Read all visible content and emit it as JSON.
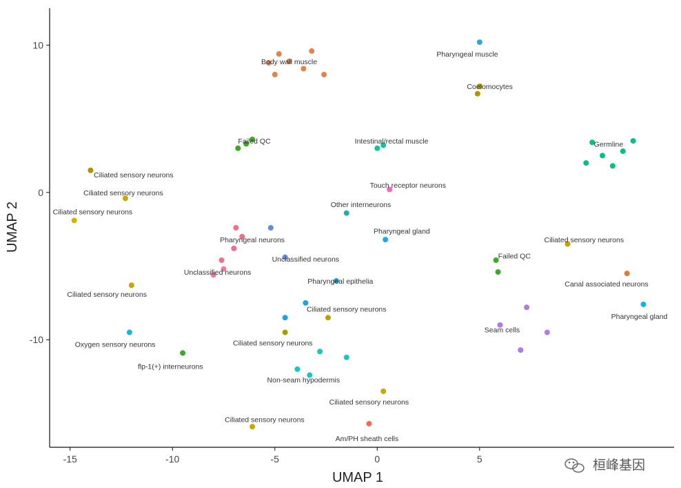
{
  "chart_data": {
    "type": "scatter",
    "xlabel": "UMAP 1",
    "ylabel": "UMAP 2",
    "xlim": [
      -16,
      14.5
    ],
    "ylim": [
      -17.3,
      12.5
    ],
    "xticks": [
      -15,
      -10,
      -5,
      0,
      5
    ],
    "yticks": [
      -10,
      0,
      10
    ],
    "grid": false,
    "clusters": [
      {
        "label": "Body wall muscle",
        "x": -4.3,
        "y": 8.9,
        "color": "#E8804A",
        "points": [
          [
            -4.3,
            8.9
          ],
          [
            -5.0,
            8.0
          ],
          [
            -3.6,
            8.4
          ],
          [
            -4.8,
            9.4
          ],
          [
            -3.2,
            9.6
          ],
          [
            -5.3,
            8.8
          ],
          [
            -2.6,
            8.0
          ]
        ]
      },
      {
        "label": "Pharyngeal muscle",
        "x": 4.4,
        "y": 9.4,
        "color": "#2BA7DE",
        "points": [
          [
            5.0,
            10.2
          ]
        ]
      },
      {
        "label": "Coelomocytes",
        "x": 5.5,
        "y": 7.2,
        "color": "#A89A00",
        "points": [
          [
            4.9,
            6.7
          ],
          [
            5.0,
            7.2
          ]
        ]
      },
      {
        "label": "Failed QC",
        "x": -6.0,
        "y": 3.5,
        "color": "#3BAA1E",
        "points": [
          [
            -6.4,
            3.3
          ],
          [
            -6.8,
            3.0
          ],
          [
            -6.1,
            3.6
          ]
        ]
      },
      {
        "label": "Intestinal/rectal muscle",
        "x": 0.7,
        "y": 3.5,
        "color": "#16BFA3",
        "points": [
          [
            0.0,
            3.0
          ],
          [
            0.3,
            3.2
          ]
        ]
      },
      {
        "label": "Germline",
        "x": 11.3,
        "y": 3.3,
        "color": "#00C082",
        "points": [
          [
            11.0,
            2.5
          ],
          [
            10.5,
            3.4
          ],
          [
            12.0,
            2.8
          ],
          [
            11.5,
            1.8
          ],
          [
            10.2,
            2.0
          ],
          [
            12.5,
            3.5
          ]
        ]
      },
      {
        "label": "Ciliated sensory neurons",
        "x": -11.9,
        "y": 1.2,
        "color": "#B88C00",
        "points": [
          [
            -14.0,
            1.5
          ]
        ]
      },
      {
        "label": "Touch receptor neurons",
        "x": 1.5,
        "y": 0.5,
        "color": "#F068C0",
        "points": [
          [
            0.6,
            0.2
          ]
        ]
      },
      {
        "label": "Ciliated sensory neurons",
        "x": -12.4,
        "y": 0.0,
        "color": "#C8A800",
        "points": [
          [
            -12.3,
            -0.4
          ]
        ]
      },
      {
        "label": "Other interneurons",
        "x": -0.8,
        "y": -0.8,
        "color": "#12B5A7",
        "points": [
          [
            -1.5,
            -1.4
          ]
        ]
      },
      {
        "label": "Ciliated sensory neurons",
        "x": -13.9,
        "y": -1.3,
        "color": "#D8B000",
        "points": [
          [
            -14.8,
            -1.9
          ]
        ]
      },
      {
        "label": "Pharyngeal gland",
        "x": 1.2,
        "y": -2.6,
        "color": "#28A6E0",
        "points": [
          [
            0.4,
            -3.2
          ]
        ]
      },
      {
        "label": "Pharyngeal neurons",
        "x": -6.1,
        "y": -3.2,
        "color": "#F0708A",
        "points": [
          [
            -7.0,
            -3.8
          ],
          [
            -7.6,
            -4.6
          ],
          [
            -6.6,
            -3.0
          ],
          [
            -6.9,
            -2.4
          ]
        ]
      },
      {
        "label": "Ciliated sensory neurons",
        "x": 10.1,
        "y": -3.2,
        "color": "#C8A000",
        "points": [
          [
            9.3,
            -3.5
          ]
        ]
      },
      {
        "label": "Unclassified neurons",
        "x": -3.5,
        "y": -4.5,
        "color": "#5F8CE8",
        "points": [
          [
            -5.2,
            -2.4
          ],
          [
            -4.5,
            -4.4
          ]
        ]
      },
      {
        "label": "Failed QC",
        "x": 6.7,
        "y": -4.3,
        "color": "#3AAA28",
        "points": [
          [
            5.8,
            -4.6
          ],
          [
            5.9,
            -5.4
          ]
        ]
      },
      {
        "label": "Unclassified neurons",
        "x": -7.8,
        "y": -5.4,
        "color": "#F27A9A",
        "points": [
          [
            -8.0,
            -5.6
          ],
          [
            -7.5,
            -5.2
          ]
        ]
      },
      {
        "label": "Pharyngeal epithelia",
        "x": -1.8,
        "y": -6.0,
        "color": "#20A2DA",
        "points": [
          [
            -2.0,
            -6.0
          ],
          [
            -3.5,
            -7.5
          ],
          [
            -4.5,
            -8.5
          ]
        ]
      },
      {
        "label": "Canal associated neurons",
        "x": 11.2,
        "y": -6.2,
        "color": "#E07A3A",
        "points": [
          [
            12.2,
            -5.5
          ]
        ]
      },
      {
        "label": "Ciliated sensory neurons",
        "x": -13.2,
        "y": -6.9,
        "color": "#C8A500",
        "points": [
          [
            -12.0,
            -6.3
          ]
        ]
      },
      {
        "label": "Ciliated sensory neurons",
        "x": -1.5,
        "y": -7.9,
        "color": "#B8A000",
        "points": [
          [
            -2.4,
            -8.5
          ]
        ]
      },
      {
        "label": "Pharyngeal gland",
        "x": 12.8,
        "y": -8.4,
        "color": "#10B4E8",
        "points": [
          [
            13.0,
            -7.6
          ]
        ]
      },
      {
        "label": "Seam cells",
        "x": 6.1,
        "y": -9.3,
        "color": "#B07AEA",
        "points": [
          [
            6.0,
            -9.0
          ],
          [
            7.3,
            -7.8
          ],
          [
            8.3,
            -9.5
          ],
          [
            7.0,
            -10.7
          ]
        ]
      },
      {
        "label": "Oxygen sensory neurons",
        "x": -12.8,
        "y": -10.3,
        "color": "#16B5E3",
        "points": [
          [
            -12.1,
            -9.5
          ]
        ]
      },
      {
        "label": "Ciliated sensory neurons",
        "x": -5.1,
        "y": -10.2,
        "color": "#A89A00",
        "points": [
          [
            -4.5,
            -9.5
          ]
        ]
      },
      {
        "label": "flp-1(+) interneurons",
        "x": -10.1,
        "y": -11.8,
        "color": "#3AAA28",
        "points": [
          [
            -9.5,
            -10.9
          ]
        ]
      },
      {
        "label": "Non-seam hypodermis",
        "x": -3.6,
        "y": -12.7,
        "color": "#1FC4BE",
        "points": [
          [
            -3.9,
            -12.0
          ],
          [
            -2.8,
            -10.8
          ],
          [
            -1.5,
            -11.2
          ],
          [
            -3.3,
            -12.4
          ]
        ]
      },
      {
        "label": "Ciliated sensory neurons",
        "x": -0.4,
        "y": -14.2,
        "color": "#C8A800",
        "points": [
          [
            0.3,
            -13.5
          ]
        ]
      },
      {
        "label": "Ciliated sensory neurons",
        "x": -5.5,
        "y": -15.4,
        "color": "#C8A800",
        "points": [
          [
            -6.1,
            -15.9
          ]
        ]
      },
      {
        "label": "Am/PH sheath cells",
        "x": -0.5,
        "y": -16.7,
        "color": "#E8705A",
        "points": [
          [
            -0.4,
            -15.7
          ]
        ]
      }
    ]
  },
  "watermark": {
    "text": "桓峰基因",
    "icon": "wechat-icon"
  }
}
